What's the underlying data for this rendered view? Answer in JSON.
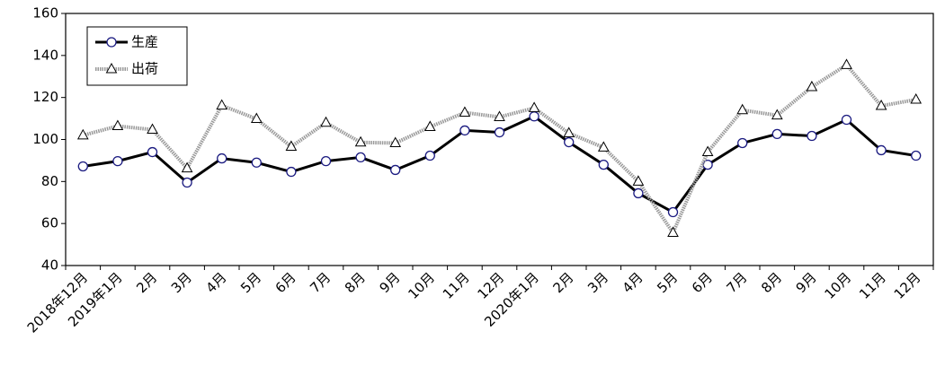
{
  "chart_data": {
    "type": "line",
    "categories": [
      "2018年12月",
      "2019年1月",
      "2月",
      "3月",
      "4月",
      "5月",
      "6月",
      "7月",
      "8月",
      "9月",
      "10月",
      "11月",
      "12月",
      "2020年1月",
      "2月",
      "3月",
      "4月",
      "5月",
      "6月",
      "7月",
      "8月",
      "9月",
      "10月",
      "11月",
      "12月"
    ],
    "series": [
      {
        "name": "生産",
        "color": "#000000",
        "marker": "circle",
        "values": [
          87.2,
          89.7,
          94,
          79.5,
          91,
          89,
          84.6,
          89.7,
          91.5,
          85.5,
          92.3,
          104.3,
          103.4,
          111,
          98.7,
          88,
          74.4,
          65.4,
          88,
          98.3,
          102.6,
          101.7,
          109.4,
          94.9,
          92.3
        ]
      },
      {
        "name": "出荷",
        "color": "#999999",
        "marker": "triangle",
        "values": [
          102,
          106.4,
          104.7,
          86.3,
          116.2,
          109.8,
          96.6,
          108,
          98.6,
          98.3,
          106,
          112.8,
          110.7,
          115,
          103,
          96.2,
          80,
          55.6,
          94,
          114,
          111.5,
          125,
          135.5,
          116,
          119
        ]
      }
    ],
    "ylim": [
      40,
      160
    ],
    "yticks": [
      40,
      60,
      80,
      100,
      120,
      140,
      160
    ],
    "grid": false,
    "legend": "upper-left"
  }
}
